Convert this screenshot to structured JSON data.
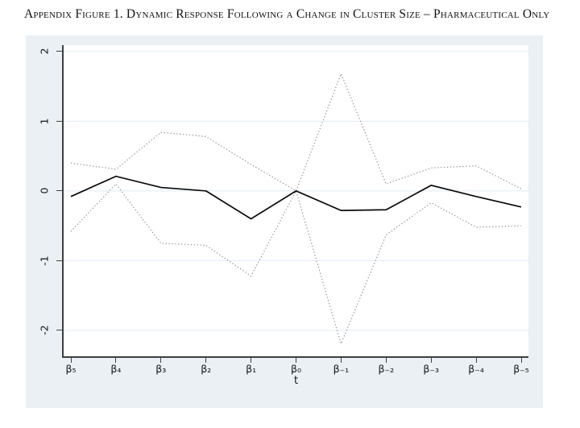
{
  "title": "Appendix Figure 1. Dynamic Response Following a Change in Cluster Size – Pharmaceutical Only",
  "chart_data": {
    "type": "line",
    "categories": [
      "β₅",
      "β₄",
      "β₃",
      "β₂",
      "β₁",
      "β₀",
      "β₋₁",
      "β₋₂",
      "β₋₃",
      "β₋₄",
      "β₋₅"
    ],
    "xlabel": "t",
    "ylabel": "",
    "ylim": [
      -2.37,
      2.09
    ],
    "yticks": [
      2,
      1,
      0,
      -1,
      -2
    ],
    "ytick_labels": [
      "2",
      "1",
      "0",
      "-1",
      "-2"
    ],
    "grid": "horizontal",
    "legend": "none",
    "series": [
      {
        "name": "ci-upper",
        "style": "dotted",
        "values": [
          0.4,
          0.31,
          0.84,
          0.78,
          0.38,
          0.0,
          1.68,
          0.1,
          0.33,
          0.36,
          0.03
        ]
      },
      {
        "name": "ci-lower",
        "style": "dotted",
        "values": [
          -0.58,
          0.1,
          -0.75,
          -0.78,
          -1.22,
          0.0,
          -2.19,
          -0.63,
          -0.17,
          -0.52,
          -0.5
        ]
      },
      {
        "name": "point-estimate",
        "style": "solid",
        "values": [
          -0.08,
          0.21,
          0.05,
          0.0,
          -0.4,
          0.0,
          -0.28,
          -0.27,
          0.08,
          -0.08,
          -0.23
        ]
      }
    ],
    "colors": {
      "graph_region_bg": "#eaf0f4",
      "plot_bg": "#ffffff",
      "gridline": "#e2ebf2",
      "axis": "#3f3f3f",
      "solid_line": "#0a0a0a",
      "dotted_line": "#8f8f8f"
    }
  }
}
